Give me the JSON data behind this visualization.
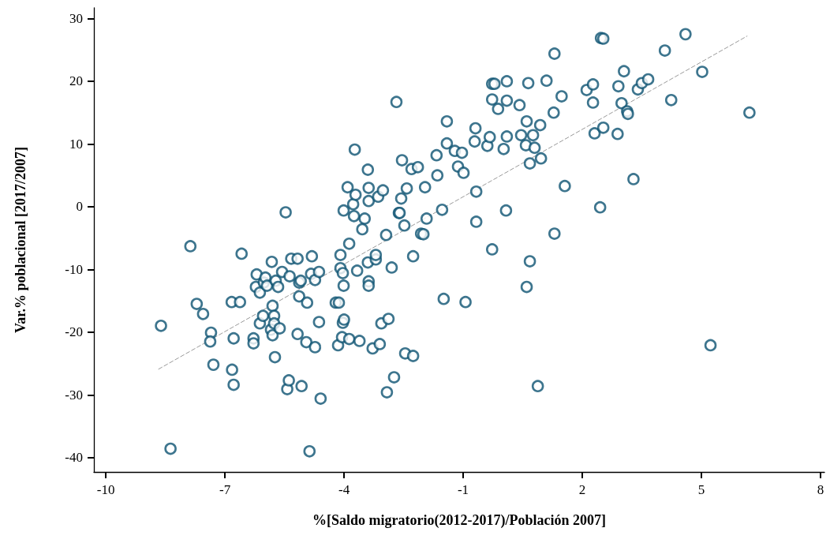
{
  "chart_data": {
    "type": "scatter",
    "xlabel": "%[Saldo migratorio(2012-2017)/Población 2007]",
    "ylabel": "Var.% poblacional [2017/2007]",
    "xlim": [
      -10.3,
      8.1
    ],
    "xticks": [
      -10,
      -7,
      -4,
      -1,
      2,
      5,
      8
    ],
    "ylim": [
      -42.3,
      31.7
    ],
    "yticks": [
      -40,
      -30,
      -20,
      -10,
      0,
      10,
      20,
      30
    ],
    "grid": false,
    "marker": "circle",
    "series": [
      {
        "color": "#0d5272",
        "x": [
          -8.61,
          -8.37,
          -7.87,
          -7.71,
          -7.55,
          -7.35,
          -7.37,
          -7.29,
          -6.83,
          -6.78,
          -6.82,
          -6.78,
          -6.62,
          -6.58,
          -6.28,
          -6.28,
          -6.2,
          -6.22,
          -6.12,
          -6.12,
          -6.04,
          -6.02,
          -5.98,
          -5.94,
          -5.82,
          -5.84,
          -5.8,
          -5.76,
          -5.76,
          -5.8,
          -5.74,
          -5.72,
          -5.66,
          -5.62,
          -5.56,
          -5.47,
          -5.43,
          -5.39,
          -5.37,
          -5.33,
          -5.17,
          -5.17,
          -5.13,
          -5.13,
          -5.09,
          -5.07,
          -4.95,
          -4.93,
          -4.87,
          -4.83,
          -4.81,
          -4.73,
          -4.73,
          -4.63,
          -4.63,
          -4.59,
          -4.21,
          -4.15,
          -4.13,
          -4.09,
          -4.09,
          -4.05,
          -4.03,
          -4.03,
          -4.01,
          -4.0,
          -4.01,
          -3.91,
          -3.87,
          -3.87,
          -3.77,
          -3.75,
          -3.73,
          -3.71,
          -3.67,
          -3.61,
          -3.54,
          -3.48,
          -3.4,
          -3.38,
          -3.38,
          -3.4,
          -3.38,
          -3.38,
          -3.28,
          -3.2,
          -3.2,
          -3.14,
          -3.1,
          -3.06,
          -3.02,
          -2.94,
          -2.92,
          -2.88,
          -2.8,
          -2.74,
          -2.68,
          -2.62,
          -2.6,
          -2.56,
          -2.54,
          -2.48,
          -2.46,
          -2.42,
          -2.3,
          -2.26,
          -2.26,
          -2.14,
          -2.06,
          -2.0,
          -1.96,
          -1.92,
          -1.65,
          -1.67,
          -1.53,
          -1.49,
          -1.41,
          -1.41,
          -1.21,
          -1.13,
          -1.03,
          -0.99,
          -0.94,
          -0.69,
          -0.71,
          -0.67,
          -0.67,
          -0.39,
          -0.33,
          -0.27,
          -0.27,
          -0.21,
          -0.27,
          -0.12,
          0.02,
          0.08,
          0.1,
          0.1,
          0.1,
          0.42,
          0.46,
          0.58,
          0.6,
          0.6,
          0.64,
          0.68,
          0.68,
          0.76,
          0.8,
          0.88,
          0.94,
          0.96,
          1.1,
          1.28,
          1.3,
          1.3,
          1.48,
          1.56,
          2.11,
          2.27,
          2.27,
          2.31,
          2.47,
          2.53,
          2.53,
          2.45,
          2.89,
          2.91,
          2.99,
          3.05,
          3.13,
          3.15,
          3.29,
          3.4,
          3.5,
          3.66,
          4.08,
          4.24,
          4.6,
          5.02,
          5.23,
          6.21
        ],
        "values": [
          -19.0,
          -38.6,
          -6.3,
          -15.5,
          -17.1,
          -20.1,
          -21.5,
          -25.2,
          -15.2,
          -21.0,
          -26.0,
          -28.4,
          -15.2,
          -7.5,
          -21.0,
          -21.8,
          -10.8,
          -12.8,
          -13.7,
          -18.6,
          -17.4,
          -12.1,
          -11.3,
          -12.6,
          -8.8,
          -19.6,
          -15.8,
          -17.4,
          -18.6,
          -20.5,
          -24.0,
          -11.8,
          -12.8,
          -19.4,
          -10.4,
          -0.9,
          -29.1,
          -27.7,
          -11.1,
          -8.3,
          -8.3,
          -20.3,
          -12.1,
          -14.3,
          -11.8,
          -28.6,
          -21.6,
          -15.3,
          -39.0,
          -10.7,
          -7.9,
          -11.7,
          -22.4,
          -18.4,
          -10.4,
          -30.6,
          -15.3,
          -22.1,
          -15.3,
          -7.7,
          -9.8,
          -20.8,
          -18.5,
          -10.6,
          -0.6,
          -18.0,
          -12.6,
          3.1,
          -5.9,
          -21.1,
          0.4,
          -1.5,
          9.1,
          1.9,
          -10.2,
          -21.4,
          -3.6,
          -1.9,
          5.9,
          3.0,
          0.9,
          -8.9,
          -11.9,
          -12.6,
          -22.6,
          -8.4,
          -7.7,
          1.6,
          -21.9,
          -18.6,
          2.6,
          -4.5,
          -29.6,
          -17.9,
          -9.7,
          -27.2,
          16.7,
          -1.0,
          -1.0,
          1.3,
          7.4,
          -3.0,
          -23.4,
          2.9,
          6.0,
          -23.8,
          -7.9,
          6.3,
          -4.3,
          -4.4,
          3.1,
          -1.9,
          5.0,
          8.2,
          -0.5,
          -14.7,
          13.6,
          10.1,
          8.9,
          6.4,
          8.6,
          5.4,
          -15.2,
          12.5,
          10.4,
          2.4,
          -2.4,
          9.7,
          11.1,
          17.1,
          19.6,
          19.6,
          -6.8,
          15.6,
          9.2,
          -0.6,
          16.9,
          11.2,
          20.0,
          16.2,
          11.4,
          9.8,
          13.6,
          -12.8,
          19.7,
          6.9,
          -8.7,
          11.4,
          9.4,
          -28.6,
          13.0,
          7.7,
          20.1,
          15.0,
          24.4,
          -4.3,
          17.6,
          3.3,
          18.6,
          19.5,
          16.6,
          11.7,
          26.9,
          26.8,
          12.6,
          -0.1,
          11.6,
          19.2,
          16.5,
          21.6,
          15.2,
          14.8,
          4.4,
          18.7,
          19.7,
          20.3,
          24.9,
          17.0,
          27.5,
          21.5,
          -22.1,
          15.0
        ]
      },
      {
        "type": "line",
        "color": "#9a9a9a",
        "line_style": "dashed",
        "marker": "none",
        "x": [
          -8.67,
          6.15
        ],
        "values": [
          -25.9,
          27.2
        ]
      }
    ]
  }
}
